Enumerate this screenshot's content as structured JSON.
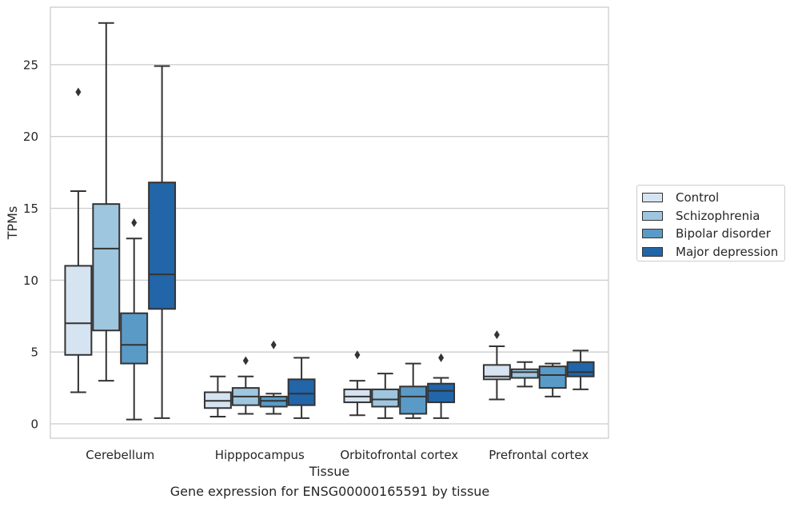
{
  "caption": "Gene expression for ENSG00000165591 by tissue",
  "chart_data": {
    "type": "box",
    "title": "",
    "xlabel": "Tissue",
    "ylabel": "TPMs",
    "ylim": [
      -1.0,
      29.0
    ],
    "yticks": [
      0,
      5,
      10,
      15,
      20,
      25
    ],
    "grid": "horizontal",
    "legend_position": "outside-right",
    "categories": [
      "Cerebellum",
      "Hipppocampus",
      "Orbitofrontal cortex",
      "Prefrontal cortex"
    ],
    "series": [
      {
        "name": "Control",
        "color": "#d6e3f1",
        "boxes": [
          {
            "min": 2.2,
            "q1": 4.8,
            "median": 7.0,
            "q3": 11.0,
            "max": 16.2,
            "outliers": [
              23.1
            ]
          },
          {
            "min": 0.5,
            "q1": 1.1,
            "median": 1.6,
            "q3": 2.2,
            "max": 3.3,
            "outliers": []
          },
          {
            "min": 0.6,
            "q1": 1.5,
            "median": 1.9,
            "q3": 2.4,
            "max": 3.0,
            "outliers": [
              4.8
            ]
          },
          {
            "min": 1.7,
            "q1": 3.1,
            "median": 3.3,
            "q3": 4.1,
            "max": 5.4,
            "outliers": [
              6.2
            ]
          }
        ]
      },
      {
        "name": "Schizophrenia",
        "color": "#9fc6df",
        "boxes": [
          {
            "min": 3.0,
            "q1": 6.5,
            "median": 12.2,
            "q3": 15.3,
            "max": 27.9,
            "outliers": []
          },
          {
            "min": 0.7,
            "q1": 1.3,
            "median": 1.9,
            "q3": 2.5,
            "max": 3.3,
            "outliers": [
              4.4
            ]
          },
          {
            "min": 0.4,
            "q1": 1.2,
            "median": 1.7,
            "q3": 2.4,
            "max": 3.5,
            "outliers": []
          },
          {
            "min": 2.6,
            "q1": 3.2,
            "median": 3.6,
            "q3": 3.8,
            "max": 4.3,
            "outliers": []
          }
        ]
      },
      {
        "name": "Bipolar disorder",
        "color": "#5a9ac6",
        "boxes": [
          {
            "min": 0.3,
            "q1": 4.2,
            "median": 5.5,
            "q3": 7.7,
            "max": 12.9,
            "outliers": [
              14.0
            ]
          },
          {
            "min": 0.7,
            "q1": 1.2,
            "median": 1.6,
            "q3": 1.9,
            "max": 2.1,
            "outliers": [
              5.5
            ]
          },
          {
            "min": 0.4,
            "q1": 0.7,
            "median": 1.9,
            "q3": 2.6,
            "max": 4.2,
            "outliers": []
          },
          {
            "min": 1.9,
            "q1": 2.5,
            "median": 3.4,
            "q3": 4.0,
            "max": 4.2,
            "outliers": []
          }
        ]
      },
      {
        "name": "Major depression",
        "color": "#2265a8",
        "boxes": [
          {
            "min": 0.4,
            "q1": 8.0,
            "median": 10.4,
            "q3": 16.8,
            "max": 24.9,
            "outliers": []
          },
          {
            "min": 0.4,
            "q1": 1.3,
            "median": 2.1,
            "q3": 3.1,
            "max": 4.6,
            "outliers": []
          },
          {
            "min": 0.4,
            "q1": 1.5,
            "median": 2.3,
            "q3": 2.8,
            "max": 3.2,
            "outliers": [
              4.6
            ]
          },
          {
            "min": 2.4,
            "q1": 3.3,
            "median": 3.6,
            "q3": 4.3,
            "max": 5.1,
            "outliers": []
          }
        ]
      }
    ]
  }
}
